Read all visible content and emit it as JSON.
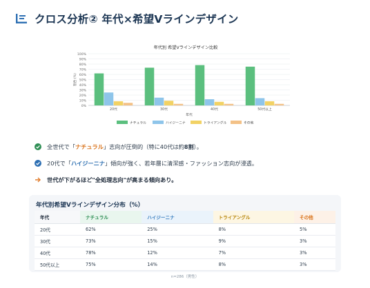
{
  "header": {
    "title": "クロス分析② 年代×希望Vラインデザイン",
    "icon": "list-chart-icon",
    "accent": "#2d6fb3"
  },
  "chart_data": {
    "type": "bar",
    "title": "年代別 希望Vラインデザイン比較",
    "xlabel": "年代",
    "ylabel": "割合 (%)",
    "ylim": [
      0,
      100
    ],
    "yticks": [
      "0%",
      "10%",
      "20%",
      "30%",
      "40%",
      "50%",
      "60%",
      "70%",
      "80%",
      "90%",
      "100%"
    ],
    "categories": [
      "20代",
      "30代",
      "40代",
      "50代以上"
    ],
    "series": [
      {
        "name": "ナチュラル",
        "values": [
          62,
          73,
          78,
          75
        ],
        "color": "#5bbf7e"
      },
      {
        "name": "ハイジーニナ",
        "values": [
          25,
          15,
          12,
          14
        ],
        "color": "#8ec5ea"
      },
      {
        "name": "トライアングル",
        "values": [
          8,
          9,
          7,
          8
        ],
        "color": "#f2d264"
      },
      {
        "name": "その他",
        "values": [
          5,
          3,
          3,
          3
        ],
        "color": "#f3c187"
      }
    ],
    "grid": true,
    "legend": "bottom"
  },
  "bullets": [
    {
      "icon": "check-circle-icon",
      "icon_color": "#2f8f55",
      "p1": "全世代で「",
      "h": "ナチュラル",
      "p2": "」志向が圧倒的（特に40代は約",
      "b": "8割",
      "p3": "）。"
    },
    {
      "icon": "check-circle-icon",
      "icon_color": "#2d6fb3",
      "p1": "20代で「",
      "h": "ハイジーニナ",
      "p2": "」傾向が強く、若年層に清潔感・ファッション志向が浸透。"
    },
    {
      "icon": "arrow-right-icon",
      "icon_color": "#e07b2a",
      "text": "世代が下がるほど\"全処理志向\"が高まる傾向あり。"
    }
  ],
  "table": {
    "title": "年代別希望Vラインデザイン分布（%）",
    "headers": [
      "年代",
      "ナチュラル",
      "ハイジーニナ",
      "トライアングル",
      "その他"
    ],
    "rows": [
      [
        "20代",
        "62%",
        "25%",
        "8%",
        "5%"
      ],
      [
        "30代",
        "73%",
        "15%",
        "9%",
        "3%"
      ],
      [
        "40代",
        "78%",
        "12%",
        "7%",
        "3%"
      ],
      [
        "50代以上",
        "75%",
        "14%",
        "8%",
        "3%"
      ]
    ]
  },
  "footnote": "n=286（男性）"
}
